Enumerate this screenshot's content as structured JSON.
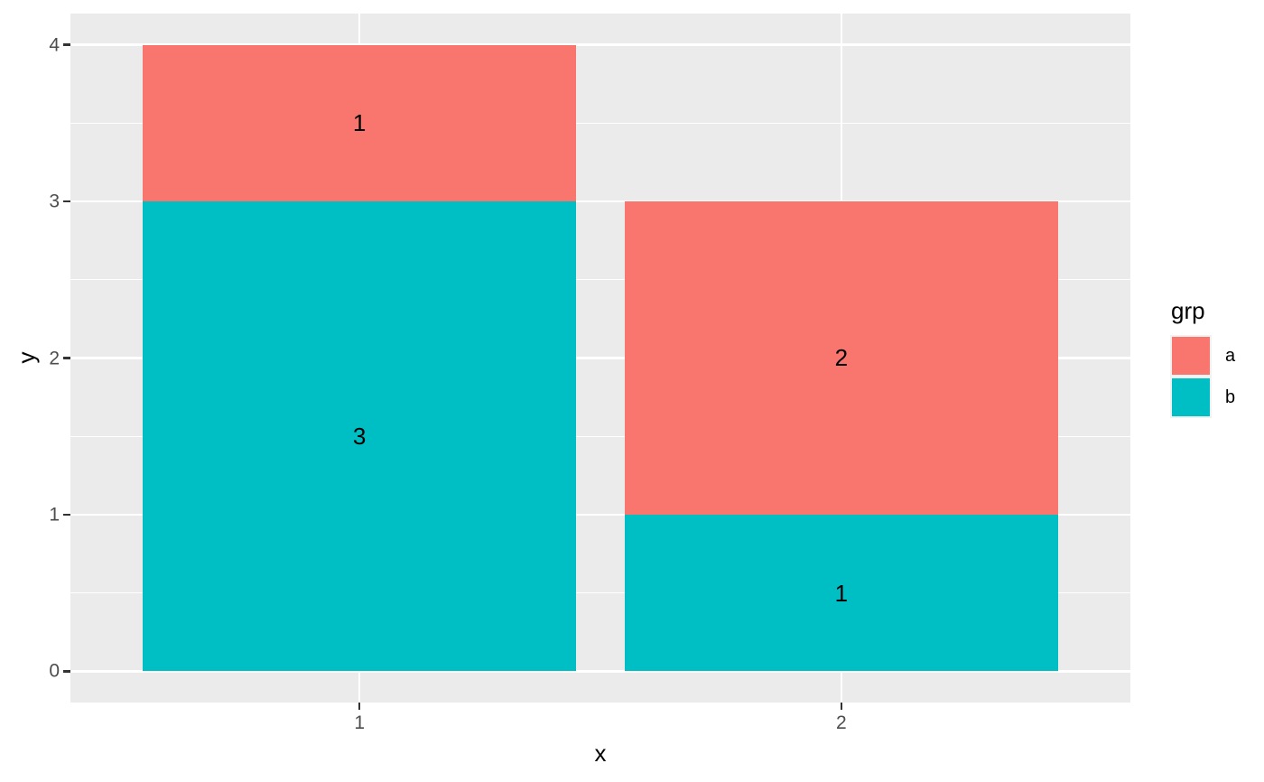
{
  "chart_data": {
    "type": "bar",
    "variant": "stacked-vertical",
    "title": "",
    "xlabel": "x",
    "ylabel": "y",
    "categories": [
      "1",
      "2"
    ],
    "x_positions": [
      1,
      2
    ],
    "series": [
      {
        "name": "a",
        "color": "#F8766D",
        "values": [
          1,
          2
        ],
        "segment_labels": [
          "1",
          "2"
        ]
      },
      {
        "name": "b",
        "color": "#00BFC4",
        "values": [
          3,
          1
        ],
        "segment_labels": [
          "3",
          "1"
        ]
      }
    ],
    "stack_order_bottom_to_top": [
      "b",
      "a"
    ],
    "bar_width": 0.9,
    "xlim": [
      0.4,
      2.6
    ],
    "ylim": [
      -0.2,
      4.2
    ],
    "xticks": {
      "values": [
        1,
        2
      ],
      "labels": [
        "1",
        "2"
      ]
    },
    "yticks": {
      "values": [
        0,
        1,
        2,
        3,
        4
      ],
      "labels": [
        "0",
        "1",
        "2",
        "3",
        "4"
      ]
    },
    "yticks_minor": [
      0.5,
      1.5,
      2.5,
      3.5
    ],
    "grid": {
      "major": true,
      "minor_horizontal": true,
      "minor_vertical": false
    },
    "legend": {
      "title": "grp",
      "position": "right",
      "entries": [
        {
          "label": "a",
          "color": "#F8766D"
        },
        {
          "label": "b",
          "color": "#00BFC4"
        }
      ]
    },
    "style": {
      "background": "#FFFFFF",
      "panel_bg": "#EBEBEB",
      "grid_major_color": "#FFFFFF",
      "grid_minor_color": "#FFFFFF",
      "axis_text_color": "#4D4D4D",
      "axis_title_color": "#000000",
      "tick_mark_color": "#333333",
      "bar_label_color": "#000000",
      "legend_title_color": "#000000",
      "legend_label_color": "#000000",
      "legend_key_bg": "#F2F2F2"
    }
  }
}
